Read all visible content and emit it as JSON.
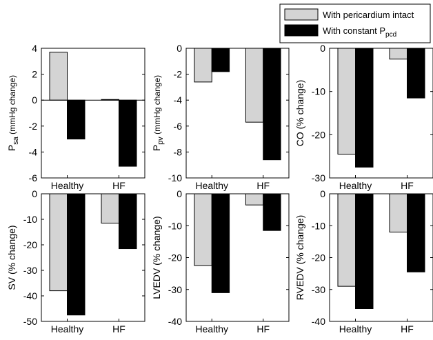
{
  "legend": {
    "placement": "top-right",
    "entries": [
      {
        "label": "With pericardium intact",
        "sub": "",
        "color": "#d4d4d4"
      },
      {
        "label": "With constant P",
        "sub": "pcd",
        "color": "#000000"
      }
    ]
  },
  "chart_data": [
    {
      "type": "bar",
      "categories": [
        "Healthy",
        "HF"
      ],
      "ylim": [
        -6,
        4
      ],
      "yticks": [
        -6,
        -4,
        -2,
        0,
        2,
        4
      ],
      "ylabel": {
        "main": "P",
        "sub": "sa",
        "unit": "(mmHg change)"
      },
      "series": [
        {
          "name": "With pericardium intact",
          "values": [
            3.7,
            0.05
          ]
        },
        {
          "name": "With constant Ppcd",
          "values": [
            -3.0,
            -5.1
          ]
        }
      ]
    },
    {
      "type": "bar",
      "categories": [
        "Healthy",
        "HF"
      ],
      "ylim": [
        -10,
        0
      ],
      "yticks": [
        -10,
        -8,
        -6,
        -4,
        -2,
        0
      ],
      "ylabel": {
        "main": "P",
        "sub": "pv",
        "unit": "(mmHg change)"
      },
      "series": [
        {
          "name": "With pericardium intact",
          "values": [
            -2.6,
            -5.7
          ]
        },
        {
          "name": "With constant Ppcd",
          "values": [
            -1.8,
            -8.6
          ]
        }
      ]
    },
    {
      "type": "bar",
      "categories": [
        "Healthy",
        "HF"
      ],
      "ylim": [
        -30,
        0
      ],
      "yticks": [
        -30,
        -20,
        -10,
        0
      ],
      "ylabel": {
        "main": "CO (% change)",
        "sub": "",
        "unit": ""
      },
      "series": [
        {
          "name": "With pericardium intact",
          "values": [
            -24.5,
            -2.5
          ]
        },
        {
          "name": "With constant Ppcd",
          "values": [
            -27.5,
            -11.5
          ]
        }
      ]
    },
    {
      "type": "bar",
      "categories": [
        "Healthy",
        "HF"
      ],
      "ylim": [
        -50,
        0
      ],
      "yticks": [
        -50,
        -40,
        -30,
        -20,
        -10,
        0
      ],
      "ylabel": {
        "main": "SV (% change)",
        "sub": "",
        "unit": ""
      },
      "series": [
        {
          "name": "With pericardium intact",
          "values": [
            -38,
            -11.5
          ]
        },
        {
          "name": "With constant Ppcd",
          "values": [
            -47.5,
            -21.5
          ]
        }
      ]
    },
    {
      "type": "bar",
      "categories": [
        "Healthy",
        "HF"
      ],
      "ylim": [
        -40,
        0
      ],
      "yticks": [
        -40,
        -30,
        -20,
        -10,
        0
      ],
      "ylabel": {
        "main": "LVEDV (% change)",
        "sub": "",
        "unit": ""
      },
      "series": [
        {
          "name": "With pericardium intact",
          "values": [
            -22.5,
            -3.5
          ]
        },
        {
          "name": "With constant Ppcd",
          "values": [
            -31,
            -11.5
          ]
        }
      ]
    },
    {
      "type": "bar",
      "categories": [
        "Healthy",
        "HF"
      ],
      "ylim": [
        -40,
        0
      ],
      "yticks": [
        -40,
        -30,
        -20,
        -10,
        0
      ],
      "ylabel": {
        "main": "RVEDV (% change)",
        "sub": "",
        "unit": ""
      },
      "series": [
        {
          "name": "With pericardium intact",
          "values": [
            -29,
            -12
          ]
        },
        {
          "name": "With constant Ppcd",
          "values": [
            -36,
            -24.5
          ]
        }
      ]
    }
  ]
}
